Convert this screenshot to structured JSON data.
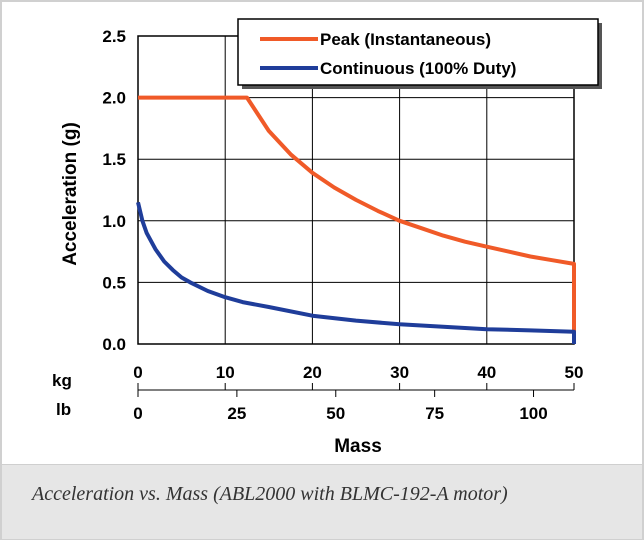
{
  "caption": "Acceleration vs. Mass (ABL2000 with BLMC-192-A motor)",
  "colors": {
    "peak": "#f05a28",
    "continuous": "#1f3d9a",
    "frame": "#d0d0d0",
    "caption_bg": "#e6e6e6"
  },
  "chart_data": {
    "type": "line",
    "title": "",
    "xlabel": "Mass",
    "ylabel": "Acceleration (g)",
    "xlim": [
      0,
      50
    ],
    "ylim": [
      0,
      2.5
    ],
    "grid": true,
    "legend_position": "top-right",
    "y_ticks": [
      "0.0",
      "0.5",
      "1.0",
      "1.5",
      "2.0",
      "2.5"
    ],
    "kg_axis": {
      "label": "kg",
      "ticks": [
        0,
        10,
        20,
        30,
        40,
        50
      ]
    },
    "lb_axis": {
      "label": "lb",
      "ticks": [
        0,
        25,
        50,
        75,
        100
      ]
    },
    "series": [
      {
        "name": "Peak (Instantaneous)",
        "x": [
          0,
          12.5,
          15,
          17.5,
          20,
          22.5,
          25,
          27.5,
          30,
          32.5,
          35,
          37.5,
          40,
          42.5,
          45,
          47.5,
          50,
          50
        ],
        "y": [
          2.0,
          2.0,
          1.73,
          1.54,
          1.39,
          1.27,
          1.17,
          1.08,
          1.0,
          0.94,
          0.88,
          0.83,
          0.79,
          0.75,
          0.71,
          0.68,
          0.65,
          0.0
        ]
      },
      {
        "name": "Continuous (100% Duty)",
        "x": [
          0,
          0.5,
          1,
          2,
          3,
          4,
          5,
          6,
          8,
          10,
          12,
          15,
          20,
          25,
          30,
          35,
          40,
          45,
          50,
          50
        ],
        "y": [
          1.15,
          1.0,
          0.9,
          0.77,
          0.67,
          0.6,
          0.54,
          0.5,
          0.43,
          0.38,
          0.34,
          0.3,
          0.23,
          0.19,
          0.16,
          0.14,
          0.12,
          0.11,
          0.1,
          0.0
        ]
      }
    ]
  }
}
